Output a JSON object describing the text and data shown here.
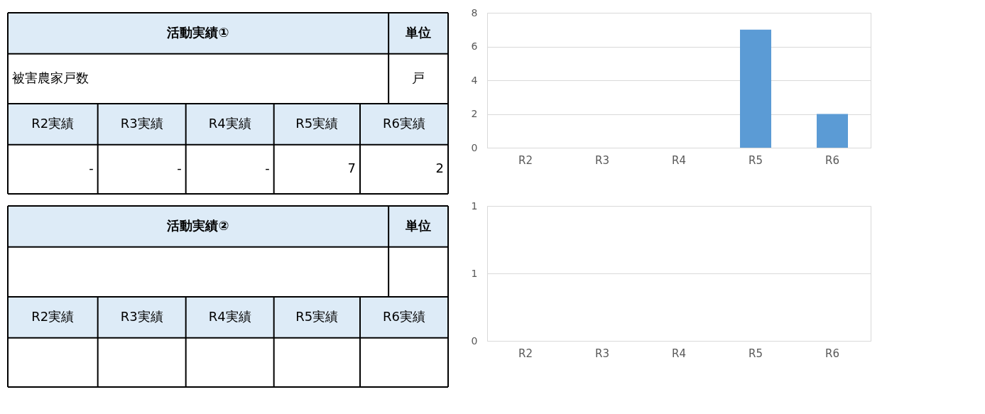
{
  "chart_data": [
    {
      "type": "bar",
      "annotations": [
        "活動実績①",
        "単位",
        "被害農家戸数",
        "戸",
        "R2実績",
        "R3実績",
        "R4実績",
        "R5実績",
        "R6実績",
        "-",
        "-",
        "-",
        "7",
        "2"
      ],
      "categories": [
        "R2",
        "R3",
        "R4",
        "R5",
        "R6"
      ],
      "values": [
        null,
        null,
        null,
        7,
        2
      ],
      "color": "#5b9bd5",
      "ylim": [
        0,
        8
      ],
      "yticks": [
        0,
        2,
        4,
        6,
        8
      ],
      "grid": "y"
    },
    {
      "type": "bar",
      "annotations": [
        "活動実績②",
        "単位",
        "R2実績",
        "R3実績",
        "R4実績",
        "R5実績",
        "R6実績"
      ],
      "categories": [
        "R2",
        "R3",
        "R4",
        "R5",
        "R6"
      ],
      "values": [
        null,
        null,
        null,
        null,
        null
      ],
      "color": "#5b9bd5",
      "ylim": [
        0,
        1
      ],
      "yticks": [
        {
          "value": 0,
          "label": "0"
        },
        {
          "value": 0.5,
          "label": "1"
        },
        {
          "value": 1,
          "label": "1"
        }
      ],
      "grid": "y"
    }
  ]
}
